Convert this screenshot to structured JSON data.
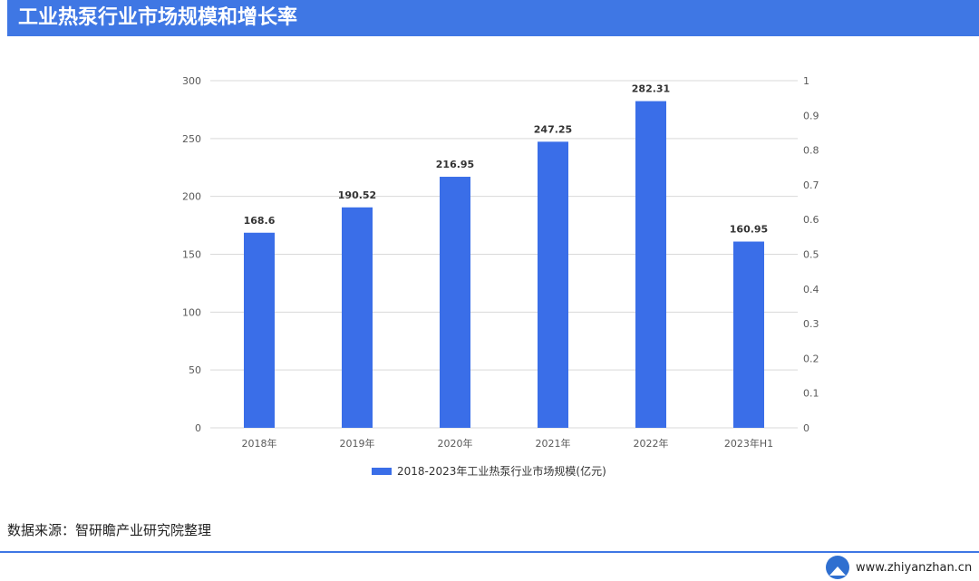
{
  "header": {
    "title": "工业热泵行业市场规模和增长率"
  },
  "footer": {
    "source": "数据来源：智研瞻产业研究院整理",
    "website": "www.zhiyanzhan.cn"
  },
  "colors": {
    "accent": "#3f77e4",
    "bar": "#3a6ee8"
  },
  "icons": {
    "logo": "zhiyanzhan-logo-icon"
  },
  "chart_data": {
    "type": "bar",
    "categories": [
      "2018年",
      "2019年",
      "2020年",
      "2021年",
      "2022年",
      "2023年H1"
    ],
    "series": [
      {
        "name": "2018-2023年工业热泵行业市场规模(亿元)",
        "values": [
          168.6,
          190.52,
          216.95,
          247.25,
          282.31,
          160.95
        ],
        "color": "#3a6ee8"
      }
    ],
    "data_labels": [
      "168.6",
      "190.52",
      "216.95",
      "247.25",
      "282.31",
      "160.95"
    ],
    "y_left": {
      "ylim": [
        0,
        300
      ],
      "ticks": [
        "0",
        "50",
        "100",
        "150",
        "200",
        "250",
        "300"
      ]
    },
    "y_right": {
      "ylim": [
        0,
        1
      ],
      "ticks": [
        "0",
        "0.1",
        "0.2",
        "0.3",
        "0.4",
        "0.5",
        "0.6",
        "0.7",
        "0.8",
        "0.9",
        "1"
      ]
    },
    "grid": true,
    "legend_position": "bottom-center"
  }
}
